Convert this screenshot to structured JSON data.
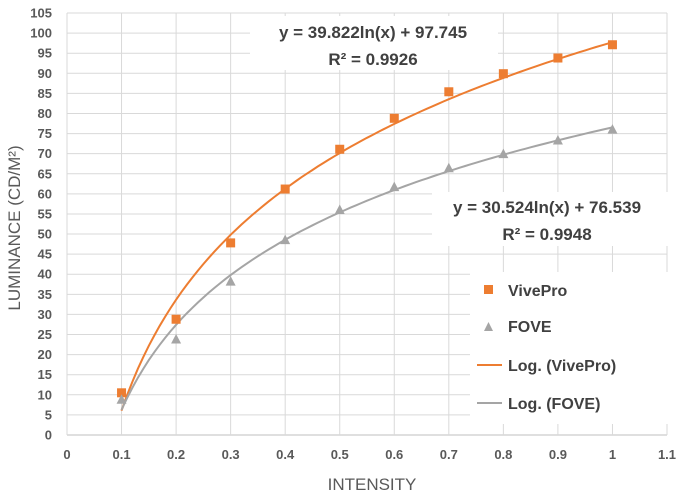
{
  "chart_data": {
    "type": "scatter",
    "xlabel": "INTENSITY",
    "ylabel": "LUMINANCE (CD/M²)",
    "xlim": [
      0,
      1.1
    ],
    "ylim": [
      0,
      105
    ],
    "xticks": [
      "0",
      "0.1",
      "0.2",
      "0.3",
      "0.4",
      "0.5",
      "0.6",
      "0.7",
      "0.8",
      "0.9",
      "1",
      "1.1"
    ],
    "yticks": [
      "0",
      "5",
      "10",
      "15",
      "20",
      "25",
      "30",
      "35",
      "40",
      "45",
      "50",
      "55",
      "60",
      "65",
      "70",
      "75",
      "80",
      "85",
      "90",
      "95",
      "100",
      "105"
    ],
    "grid": true,
    "legend_position": "right",
    "series": [
      {
        "name": "VivePro",
        "marker": "square",
        "color": "#ED7D31",
        "x": [
          0.1,
          0.2,
          0.3,
          0.4,
          0.5,
          0.6,
          0.7,
          0.8,
          0.9,
          1.0
        ],
        "y": [
          10.5,
          28.8,
          47.8,
          61.2,
          71.1,
          78.8,
          85.4,
          89.9,
          93.8,
          97.1
        ]
      },
      {
        "name": "FOVE",
        "marker": "triangle",
        "color": "#A5A5A5",
        "x": [
          0.1,
          0.2,
          0.3,
          0.4,
          0.5,
          0.6,
          0.7,
          0.8,
          0.9,
          1.0
        ],
        "y": [
          8.9,
          23.9,
          38.3,
          48.6,
          56.1,
          61.8,
          66.5,
          70.0,
          73.4,
          76.1
        ]
      }
    ],
    "trendlines": [
      {
        "name": "Log. (VivePro)",
        "color": "#ED7D31",
        "a": 39.822,
        "b": 97.745,
        "equation": "y = 39.822ln(x) + 97.745",
        "r2": "R² = 0.9926"
      },
      {
        "name": "Log. (FOVE)",
        "color": "#A5A5A5",
        "a": 30.524,
        "b": 76.539,
        "equation": "y = 30.524ln(x) + 76.539",
        "r2": "R² = 0.9948"
      }
    ],
    "legend": [
      "VivePro",
      "FOVE",
      "Log. (VivePro)",
      "Log. (FOVE)"
    ]
  }
}
